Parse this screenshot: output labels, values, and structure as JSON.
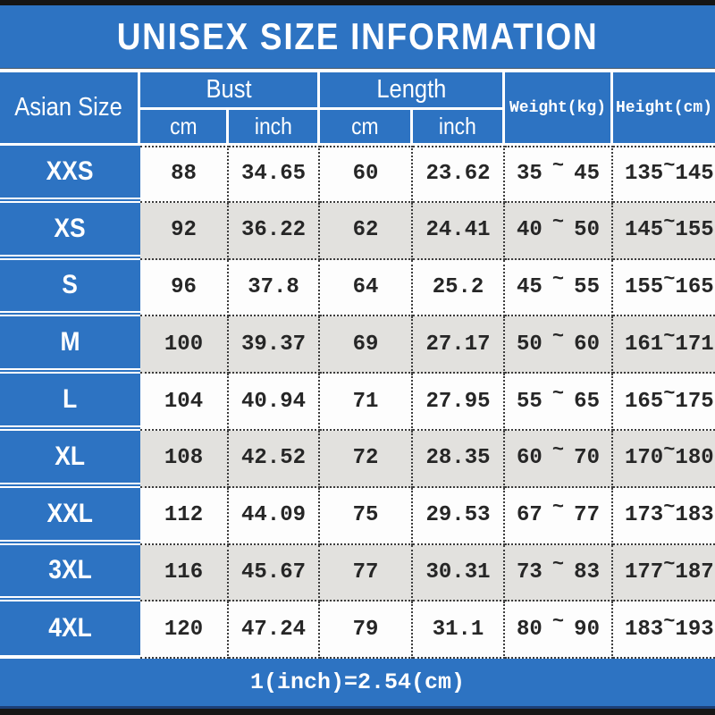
{
  "title": "UNISEX SIZE INFORMATION",
  "header": {
    "size_col": "Asian Size",
    "bust": "Bust",
    "length": "Length",
    "weight": "Weight(kg)",
    "height": "Height(cm)",
    "cm": "cm",
    "inch": "inch"
  },
  "tilde": "~",
  "rows": [
    {
      "size": "XXS",
      "bust_cm": "88",
      "bust_inch": "34.65",
      "length_cm": "60",
      "length_inch": "23.62",
      "weight_min": "35",
      "weight_max": "45",
      "height_min": "135",
      "height_max": "145"
    },
    {
      "size": "XS",
      "bust_cm": "92",
      "bust_inch": "36.22",
      "length_cm": "62",
      "length_inch": "24.41",
      "weight_min": "40",
      "weight_max": "50",
      "height_min": "145",
      "height_max": "155"
    },
    {
      "size": "S",
      "bust_cm": "96",
      "bust_inch": "37.8",
      "length_cm": "64",
      "length_inch": "25.2",
      "weight_min": "45",
      "weight_max": "55",
      "height_min": "155",
      "height_max": "165"
    },
    {
      "size": "M",
      "bust_cm": "100",
      "bust_inch": "39.37",
      "length_cm": "69",
      "length_inch": "27.17",
      "weight_min": "50",
      "weight_max": "60",
      "height_min": "161",
      "height_max": "171"
    },
    {
      "size": "L",
      "bust_cm": "104",
      "bust_inch": "40.94",
      "length_cm": "71",
      "length_inch": "27.95",
      "weight_min": "55",
      "weight_max": "65",
      "height_min": "165",
      "height_max": "175"
    },
    {
      "size": "XL",
      "bust_cm": "108",
      "bust_inch": "42.52",
      "length_cm": "72",
      "length_inch": "28.35",
      "weight_min": "60",
      "weight_max": "70",
      "height_min": "170",
      "height_max": "180"
    },
    {
      "size": "XXL",
      "bust_cm": "112",
      "bust_inch": "44.09",
      "length_cm": "75",
      "length_inch": "29.53",
      "weight_min": "67",
      "weight_max": "77",
      "height_min": "173",
      "height_max": "183"
    },
    {
      "size": "3XL",
      "bust_cm": "116",
      "bust_inch": "45.67",
      "length_cm": "77",
      "length_inch": "30.31",
      "weight_min": "73",
      "weight_max": "83",
      "height_min": "177",
      "height_max": "187"
    },
    {
      "size": "4XL",
      "bust_cm": "120",
      "bust_inch": "47.24",
      "length_cm": "79",
      "length_inch": "31.1",
      "weight_min": "80",
      "weight_max": "90",
      "height_min": "183",
      "height_max": "193"
    }
  ],
  "footer": "1(inch)=2.54(cm)",
  "colors": {
    "banner_blue": "#2d73c2",
    "row_white": "#fdfdfd",
    "row_gray": "#e2e1de",
    "border_dot": "#3c3c3c",
    "bar_black": "#151515"
  }
}
